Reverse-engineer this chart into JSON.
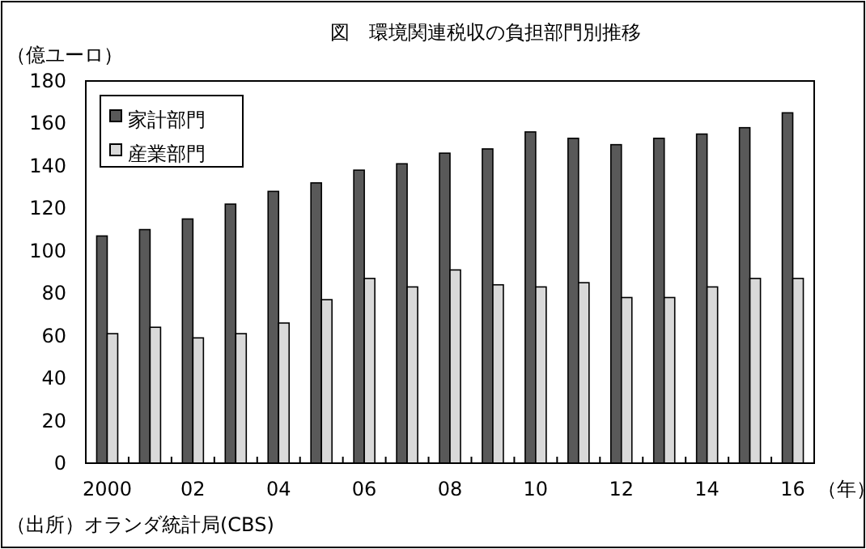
{
  "chart_data": {
    "type": "bar",
    "title": "図　環境関連税収の負担部門別推移",
    "ylabel": "（億ユーロ）",
    "xlabel": "（年）",
    "categories": [
      "2000",
      null,
      "02",
      null,
      "04",
      null,
      "06",
      null,
      "08",
      null,
      "10",
      null,
      "12",
      null,
      "14",
      null,
      "16"
    ],
    "series": [
      {
        "name": "家計部門",
        "color": "#595959",
        "values": [
          107,
          110,
          115,
          122,
          128,
          132,
          138,
          141,
          146,
          148,
          156,
          153,
          150,
          153,
          155,
          158,
          165
        ]
      },
      {
        "name": "産業部門",
        "color": "#d9d9d9",
        "values": [
          61,
          64,
          59,
          61,
          66,
          77,
          87,
          83,
          91,
          84,
          83,
          85,
          78,
          78,
          83,
          87,
          87
        ]
      }
    ],
    "ylim": [
      0,
      180
    ],
    "yticks": [
      0,
      20,
      40,
      60,
      80,
      100,
      120,
      140,
      160,
      180
    ],
    "legend": "top left",
    "grid": false,
    "annotations": [
      "（出所）オランダ統計局(CBS)"
    ]
  }
}
